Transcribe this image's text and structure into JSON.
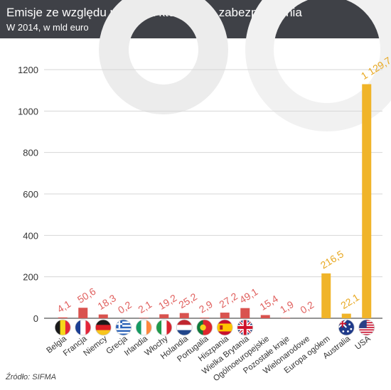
{
  "header": {
    "title": "Emisje ze względu na kraj z którego są zabezpieczenia",
    "subtitle": "W 2014, w mld euro"
  },
  "source": "Źródło: SIFMA",
  "colors": {
    "header_bg": "#3f4147",
    "bar_red": "#d9534f",
    "bar_gold": "#f0b429",
    "label_red": "#e0605e",
    "label_gold": "#e8a821"
  },
  "chart_data": {
    "type": "bar",
    "title": "Emisje ze względu na kraj z którego są zabezpieczenia",
    "subtitle": "W 2014, w mld euro",
    "xlabel": "",
    "ylabel": "",
    "ylim": [
      0,
      1200
    ],
    "yticks": [
      0,
      200,
      400,
      600,
      800,
      1000,
      1200
    ],
    "grid": true,
    "categories": [
      "Belgia",
      "Francja",
      "Niemcy",
      "Grecja",
      "Irlandia",
      "Włochy",
      "Holandia",
      "Portugalia",
      "Hiszpania",
      "Wielka Brytania",
      "Ogólnoeuropejskie",
      "Pozostałe kraje",
      "Wielonarodowe",
      "Europa ogółem",
      "Australia",
      "USA"
    ],
    "values": [
      4.1,
      50.6,
      18.3,
      0.2,
      2.1,
      19.2,
      25.2,
      2.9,
      27.2,
      49.1,
      15.4,
      1.9,
      0.2,
      216.5,
      22.1,
      1129.7
    ],
    "value_labels": [
      "4,1",
      "50,6",
      "18,3",
      "0,2",
      "2,1",
      "19,2",
      "25,2",
      "2,9",
      "27,2",
      "49,1",
      "15,4",
      "1,9",
      "0,2",
      "216,5",
      "22,1",
      "1 129,7"
    ],
    "bar_colors": [
      "red",
      "red",
      "red",
      "red",
      "red",
      "red",
      "red",
      "red",
      "red",
      "red",
      "red",
      "red",
      "red",
      "gold",
      "gold",
      "gold"
    ],
    "flags": [
      "belgium-flag",
      "france-flag",
      "germany-flag",
      "greece-flag",
      "ireland-flag",
      "italy-flag",
      "netherlands-flag",
      "portugal-flag",
      "spain-flag",
      "uk-flag",
      "",
      "",
      "",
      "",
      "australia-flag",
      "usa-flag"
    ]
  }
}
